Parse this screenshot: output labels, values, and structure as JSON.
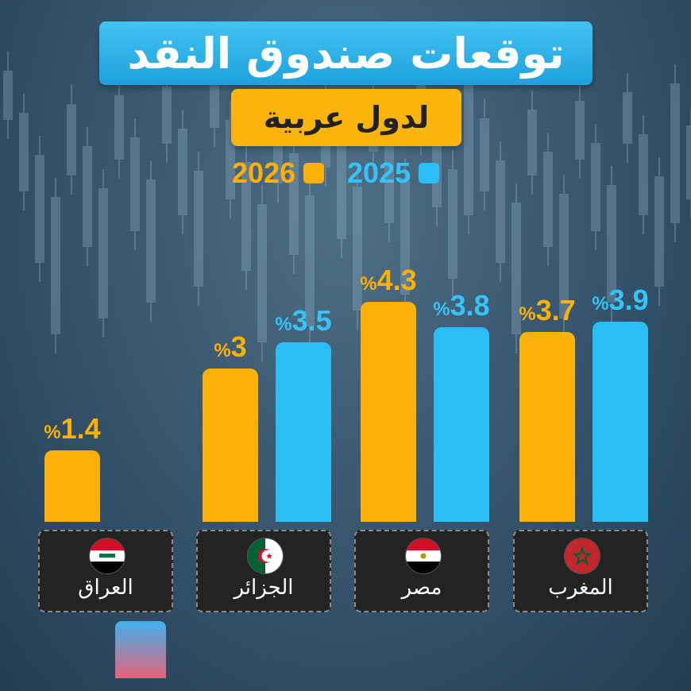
{
  "header": {
    "title": "توقعات صندوق النقد",
    "subtitle": "لدول عربية"
  },
  "legend": {
    "items": [
      {
        "label": "2025",
        "color": "#2bbdf6"
      },
      {
        "label": "2026",
        "color": "#fcb00a"
      }
    ]
  },
  "countries": [
    {
      "name": "المغرب",
      "flag_icon": "morocco-flag-icon"
    },
    {
      "name": "مصر",
      "flag_icon": "egypt-flag-icon"
    },
    {
      "name": "الجزائر",
      "flag_icon": "algeria-flag-icon"
    },
    {
      "name": "العراق",
      "flag_icon": "iraq-flag-icon"
    }
  ],
  "chart_data": {
    "type": "bar",
    "categories": [
      "المغرب",
      "مصر",
      "الجزائر",
      "العراق"
    ],
    "series": [
      {
        "name": "2025",
        "values": [
          3.9,
          3.8,
          3.5,
          null
        ],
        "labels": [
          "3.9",
          "3.8",
          "3.5",
          ""
        ]
      },
      {
        "name": "2026",
        "values": [
          3.7,
          4.3,
          3,
          1.4
        ],
        "labels": [
          "3.7",
          "4.3",
          "3",
          "1.4"
        ]
      }
    ],
    "unit_label": "%",
    "colors": {
      "2025": "#2bbdf6",
      "2026": "#fcb00a"
    }
  }
}
